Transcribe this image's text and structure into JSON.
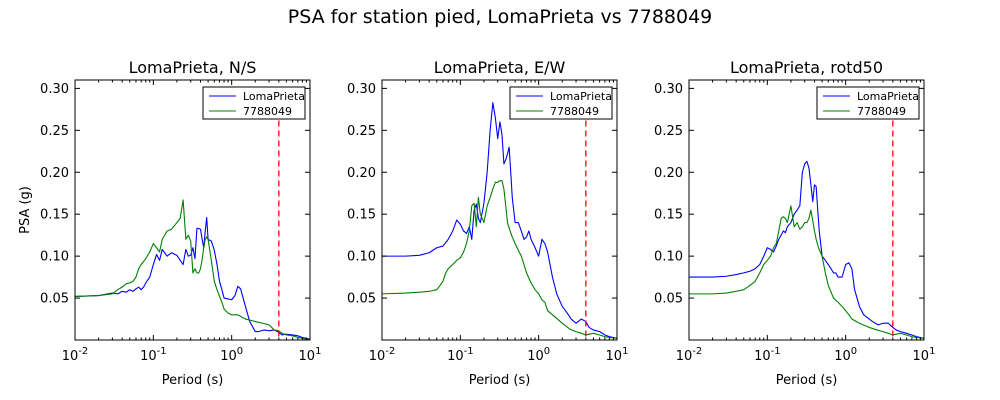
{
  "figure_title": "PSA for station pied, LomaPrieta vs 7788049",
  "colors": {
    "LomaPrieta": "#0000ff",
    "7788049": "#008000",
    "reference_line": "#ff0000"
  },
  "chart_data": [
    {
      "type": "line",
      "title": "LomaPrieta, N/S",
      "xlabel": "Period (s)",
      "ylabel": "PSA (g)",
      "xscale": "log",
      "xlim": [
        0.01,
        10
      ],
      "ylim": [
        0.0,
        0.31
      ],
      "xticks": [
        0.01,
        0.1,
        1,
        10
      ],
      "xtick_labels": [
        {
          "base": "10",
          "exp": "-2"
        },
        {
          "base": "10",
          "exp": "-1"
        },
        {
          "base": "10",
          "exp": "0"
        },
        {
          "base": "10",
          "exp": "1"
        }
      ],
      "yticks": [
        0.05,
        0.1,
        0.15,
        0.2,
        0.25,
        0.3
      ],
      "ytick_labels": [
        "0.05",
        "0.10",
        "0.15",
        "0.20",
        "0.25",
        "0.30"
      ],
      "legend": "top-right",
      "grid": false,
      "vline": {
        "x": 4.0,
        "style": "dashed"
      },
      "series": [
        {
          "name": "LomaPrieta",
          "x": [
            0.01,
            0.02,
            0.03,
            0.035,
            0.04,
            0.045,
            0.05,
            0.055,
            0.06,
            0.065,
            0.07,
            0.075,
            0.08,
            0.09,
            0.1,
            0.11,
            0.12,
            0.13,
            0.15,
            0.17,
            0.2,
            0.22,
            0.24,
            0.26,
            0.28,
            0.3,
            0.32,
            0.34,
            0.36,
            0.38,
            0.4,
            0.42,
            0.44,
            0.46,
            0.48,
            0.5,
            0.55,
            0.6,
            0.65,
            0.7,
            0.75,
            0.8,
            0.9,
            1.0,
            1.1,
            1.2,
            1.3,
            1.5,
            1.7,
            2.0,
            2.2,
            2.4,
            2.6,
            3.0,
            3.5,
            4.0,
            4.4,
            5.0,
            6.0,
            7.0,
            8.0,
            9.0,
            10.0
          ],
          "values": [
            0.052,
            0.053,
            0.056,
            0.055,
            0.058,
            0.057,
            0.06,
            0.058,
            0.061,
            0.063,
            0.06,
            0.063,
            0.068,
            0.075,
            0.09,
            0.102,
            0.095,
            0.108,
            0.1,
            0.104,
            0.101,
            0.095,
            0.09,
            0.108,
            0.1,
            0.101,
            0.11,
            0.097,
            0.133,
            0.133,
            0.132,
            0.12,
            0.11,
            0.13,
            0.146,
            0.12,
            0.118,
            0.107,
            0.09,
            0.07,
            0.06,
            0.05,
            0.049,
            0.048,
            0.053,
            0.064,
            0.061,
            0.04,
            0.022,
            0.01,
            0.01,
            0.011,
            0.012,
            0.011,
            0.012,
            0.009,
            0.006,
            0.007,
            0.006,
            0.005,
            0.003,
            0.002,
            0.001
          ]
        },
        {
          "name": "7788049",
          "x": [
            0.01,
            0.02,
            0.03,
            0.035,
            0.04,
            0.045,
            0.05,
            0.055,
            0.06,
            0.065,
            0.07,
            0.08,
            0.09,
            0.1,
            0.11,
            0.12,
            0.13,
            0.15,
            0.17,
            0.2,
            0.22,
            0.24,
            0.26,
            0.28,
            0.3,
            0.32,
            0.34,
            0.36,
            0.38,
            0.4,
            0.42,
            0.44,
            0.46,
            0.48,
            0.5,
            0.55,
            0.6,
            0.65,
            0.7,
            0.75,
            0.8,
            0.9,
            1.0,
            1.1,
            1.2,
            1.5,
            2.0,
            2.5,
            3.0,
            3.5,
            4.0,
            4.4,
            5.0,
            6.0,
            7.0,
            8.0,
            9.0,
            10.0
          ],
          "values": [
            0.052,
            0.053,
            0.055,
            0.06,
            0.063,
            0.067,
            0.068,
            0.07,
            0.075,
            0.085,
            0.09,
            0.097,
            0.105,
            0.115,
            0.11,
            0.105,
            0.12,
            0.13,
            0.132,
            0.14,
            0.145,
            0.167,
            0.12,
            0.125,
            0.118,
            0.08,
            0.085,
            0.08,
            0.08,
            0.085,
            0.096,
            0.11,
            0.12,
            0.123,
            0.12,
            0.095,
            0.07,
            0.06,
            0.052,
            0.045,
            0.037,
            0.032,
            0.03,
            0.03,
            0.03,
            0.025,
            0.022,
            0.02,
            0.018,
            0.012,
            0.011,
            0.008,
            0.006,
            0.005,
            0.003,
            0.002,
            0.001,
            0.001
          ]
        }
      ]
    },
    {
      "type": "line",
      "title": "LomaPrieta, E/W",
      "xlabel": "Period (s)",
      "ylabel": "",
      "xscale": "log",
      "xlim": [
        0.01,
        10
      ],
      "ylim": [
        0.0,
        0.31
      ],
      "xticks": [
        0.01,
        0.1,
        1,
        10
      ],
      "xtick_labels": [
        {
          "base": "10",
          "exp": "-2"
        },
        {
          "base": "10",
          "exp": "-1"
        },
        {
          "base": "10",
          "exp": "0"
        },
        {
          "base": "10",
          "exp": "1"
        }
      ],
      "yticks": [
        0.05,
        0.1,
        0.15,
        0.2,
        0.25,
        0.3
      ],
      "ytick_labels": [
        "0.05",
        "0.10",
        "0.15",
        "0.20",
        "0.25",
        "0.30"
      ],
      "legend": "top-right",
      "grid": false,
      "vline": {
        "x": 4.0,
        "style": "dashed"
      },
      "series": [
        {
          "name": "LomaPrieta",
          "x": [
            0.01,
            0.02,
            0.03,
            0.04,
            0.05,
            0.06,
            0.07,
            0.08,
            0.09,
            0.1,
            0.11,
            0.12,
            0.13,
            0.14,
            0.15,
            0.16,
            0.17,
            0.18,
            0.2,
            0.22,
            0.24,
            0.26,
            0.28,
            0.3,
            0.32,
            0.34,
            0.36,
            0.38,
            0.4,
            0.42,
            0.44,
            0.46,
            0.48,
            0.5,
            0.55,
            0.6,
            0.65,
            0.7,
            0.75,
            0.8,
            0.9,
            1.0,
            1.1,
            1.2,
            1.3,
            1.5,
            1.7,
            2.0,
            2.2,
            2.4,
            2.6,
            3.0,
            3.5,
            4.0,
            4.4,
            5.0,
            6.0,
            7.0,
            8.0,
            10.0
          ],
          "values": [
            0.1,
            0.1,
            0.101,
            0.104,
            0.11,
            0.112,
            0.12,
            0.13,
            0.143,
            0.138,
            0.13,
            0.127,
            0.135,
            0.12,
            0.155,
            0.162,
            0.145,
            0.14,
            0.163,
            0.2,
            0.25,
            0.283,
            0.265,
            0.24,
            0.26,
            0.245,
            0.21,
            0.215,
            0.222,
            0.23,
            0.2,
            0.17,
            0.155,
            0.14,
            0.14,
            0.13,
            0.12,
            0.123,
            0.13,
            0.12,
            0.11,
            0.1,
            0.12,
            0.115,
            0.105,
            0.075,
            0.055,
            0.04,
            0.035,
            0.03,
            0.025,
            0.02,
            0.025,
            0.022,
            0.015,
            0.012,
            0.01,
            0.006,
            0.004,
            0.002
          ]
        },
        {
          "name": "7788049",
          "x": [
            0.01,
            0.02,
            0.03,
            0.04,
            0.05,
            0.055,
            0.06,
            0.065,
            0.07,
            0.08,
            0.09,
            0.1,
            0.11,
            0.12,
            0.13,
            0.14,
            0.15,
            0.16,
            0.17,
            0.18,
            0.2,
            0.22,
            0.24,
            0.26,
            0.28,
            0.3,
            0.32,
            0.34,
            0.36,
            0.38,
            0.4,
            0.45,
            0.5,
            0.55,
            0.6,
            0.65,
            0.7,
            0.8,
            0.9,
            1.0,
            1.1,
            1.2,
            1.3,
            1.5,
            2.0,
            2.5,
            3.0,
            3.5,
            4.0,
            5.0,
            6.0,
            7.0,
            8.0,
            10.0
          ],
          "values": [
            0.055,
            0.056,
            0.057,
            0.058,
            0.06,
            0.065,
            0.07,
            0.08,
            0.085,
            0.09,
            0.095,
            0.098,
            0.105,
            0.115,
            0.13,
            0.16,
            0.163,
            0.135,
            0.17,
            0.15,
            0.14,
            0.16,
            0.17,
            0.18,
            0.188,
            0.188,
            0.19,
            0.19,
            0.18,
            0.16,
            0.14,
            0.125,
            0.115,
            0.107,
            0.1,
            0.09,
            0.08,
            0.068,
            0.06,
            0.055,
            0.048,
            0.045,
            0.035,
            0.03,
            0.02,
            0.013,
            0.01,
            0.008,
            0.006,
            0.008,
            0.006,
            0.004,
            0.003,
            0.002
          ]
        }
      ]
    },
    {
      "type": "line",
      "title": "LomaPrieta, rotd50",
      "xlabel": "Period (s)",
      "ylabel": "",
      "xscale": "log",
      "xlim": [
        0.01,
        10
      ],
      "ylim": [
        0.0,
        0.31
      ],
      "xticks": [
        0.01,
        0.1,
        1,
        10
      ],
      "xtick_labels": [
        {
          "base": "10",
          "exp": "-2"
        },
        {
          "base": "10",
          "exp": "-1"
        },
        {
          "base": "10",
          "exp": "0"
        },
        {
          "base": "10",
          "exp": "1"
        }
      ],
      "yticks": [
        0.05,
        0.1,
        0.15,
        0.2,
        0.25,
        0.3
      ],
      "ytick_labels": [
        "0.05",
        "0.10",
        "0.15",
        "0.20",
        "0.25",
        "0.30"
      ],
      "legend": "top-right",
      "grid": false,
      "vline": {
        "x": 4.0,
        "style": "dashed"
      },
      "series": [
        {
          "name": "LomaPrieta",
          "x": [
            0.01,
            0.02,
            0.03,
            0.04,
            0.05,
            0.06,
            0.07,
            0.08,
            0.09,
            0.1,
            0.11,
            0.12,
            0.13,
            0.14,
            0.15,
            0.16,
            0.17,
            0.18,
            0.2,
            0.22,
            0.24,
            0.26,
            0.28,
            0.3,
            0.32,
            0.34,
            0.36,
            0.38,
            0.4,
            0.42,
            0.44,
            0.46,
            0.48,
            0.5,
            0.55,
            0.6,
            0.65,
            0.7,
            0.75,
            0.8,
            0.9,
            1.0,
            1.1,
            1.2,
            1.3,
            1.5,
            1.7,
            2.0,
            2.2,
            2.4,
            2.6,
            3.0,
            3.5,
            4.0,
            4.4,
            5.0,
            6.0,
            7.0,
            8.0,
            10.0
          ],
          "values": [
            0.075,
            0.075,
            0.076,
            0.078,
            0.08,
            0.082,
            0.085,
            0.09,
            0.1,
            0.11,
            0.108,
            0.105,
            0.112,
            0.12,
            0.125,
            0.13,
            0.128,
            0.135,
            0.14,
            0.15,
            0.155,
            0.16,
            0.2,
            0.21,
            0.213,
            0.205,
            0.185,
            0.165,
            0.185,
            0.183,
            0.155,
            0.13,
            0.115,
            0.1,
            0.095,
            0.09,
            0.085,
            0.08,
            0.08,
            0.075,
            0.075,
            0.09,
            0.092,
            0.085,
            0.06,
            0.04,
            0.03,
            0.025,
            0.022,
            0.02,
            0.018,
            0.02,
            0.02,
            0.015,
            0.012,
            0.01,
            0.008,
            0.006,
            0.004,
            0.002
          ]
        },
        {
          "name": "7788049",
          "x": [
            0.01,
            0.02,
            0.03,
            0.04,
            0.05,
            0.06,
            0.07,
            0.08,
            0.09,
            0.1,
            0.11,
            0.12,
            0.13,
            0.14,
            0.15,
            0.16,
            0.17,
            0.18,
            0.2,
            0.22,
            0.24,
            0.26,
            0.28,
            0.3,
            0.32,
            0.34,
            0.36,
            0.38,
            0.4,
            0.42,
            0.45,
            0.5,
            0.55,
            0.6,
            0.7,
            0.8,
            0.9,
            1.0,
            1.1,
            1.2,
            1.5,
            2.0,
            2.5,
            3.0,
            3.5,
            4.0,
            5.0,
            6.0,
            7.0,
            8.0,
            10.0
          ],
          "values": [
            0.055,
            0.055,
            0.056,
            0.058,
            0.06,
            0.065,
            0.07,
            0.08,
            0.09,
            0.095,
            0.1,
            0.11,
            0.115,
            0.13,
            0.145,
            0.147,
            0.145,
            0.14,
            0.16,
            0.135,
            0.14,
            0.132,
            0.135,
            0.14,
            0.14,
            0.145,
            0.155,
            0.142,
            0.13,
            0.12,
            0.11,
            0.1,
            0.08,
            0.065,
            0.05,
            0.045,
            0.04,
            0.035,
            0.03,
            0.025,
            0.02,
            0.015,
            0.012,
            0.01,
            0.008,
            0.006,
            0.008,
            0.006,
            0.004,
            0.003,
            0.002
          ]
        }
      ]
    }
  ]
}
